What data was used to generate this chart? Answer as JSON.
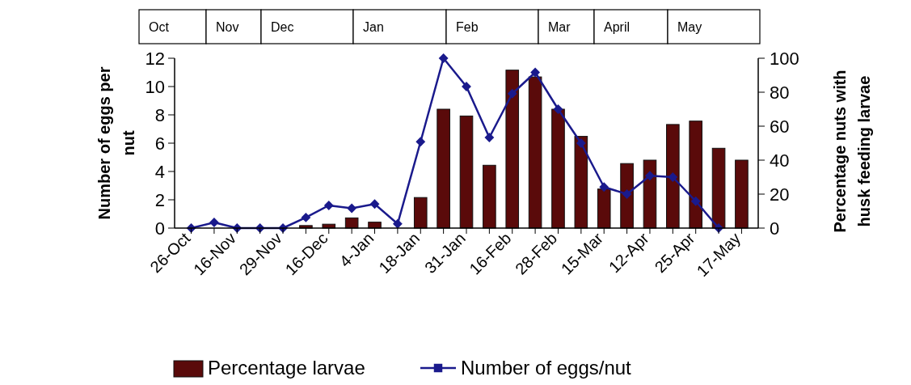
{
  "chart_data": {
    "type": "bar",
    "categories": [
      "26-Oct",
      null,
      "16-Nov",
      null,
      "29-Nov",
      null,
      "16-Dec",
      null,
      "4-Jan",
      null,
      "18-Jan",
      null,
      "31-Jan",
      null,
      "16-Feb",
      null,
      "28-Feb",
      null,
      "15-Mar",
      null,
      "12-Apr",
      null,
      "25-Apr",
      null,
      "17-May"
    ],
    "series": [
      {
        "name": "Percentage larvae",
        "axis": "y2",
        "color": "#5a0a0a",
        "values": [
          0,
          0,
          0,
          0,
          0,
          1.5,
          2.3,
          6,
          3.5,
          0,
          18,
          70,
          66,
          37,
          93,
          89,
          70,
          54,
          23,
          38,
          40,
          61,
          63,
          47,
          40
        ]
      },
      {
        "name": "Number of eggs/nut",
        "type": "line",
        "color": "#1a1a8c",
        "marker": "diamond",
        "values": [
          0,
          0.4,
          0,
          0,
          0,
          0.75,
          1.6,
          1.4,
          1.7,
          0.3,
          6.1,
          12,
          10,
          6.4,
          9.5,
          11,
          8.4,
          6,
          2.9,
          2.4,
          3.7,
          3.6,
          1.9,
          0,
          null
        ]
      }
    ],
    "ylabel": "Number of eggs per nut",
    "y2label": "Percentage nuts with husk feeding larvae",
    "ylim": [
      0,
      12
    ],
    "yticks": [
      0,
      2,
      4,
      6,
      8,
      10,
      12
    ],
    "y2lim": [
      0,
      100
    ],
    "y2ticks": [
      0,
      20,
      40,
      60,
      80,
      100
    ],
    "annotations": [
      "Oct",
      "Nov",
      "Dec",
      "Jan",
      "Feb",
      "Mar",
      "April",
      "May"
    ],
    "legend": "bottom"
  }
}
